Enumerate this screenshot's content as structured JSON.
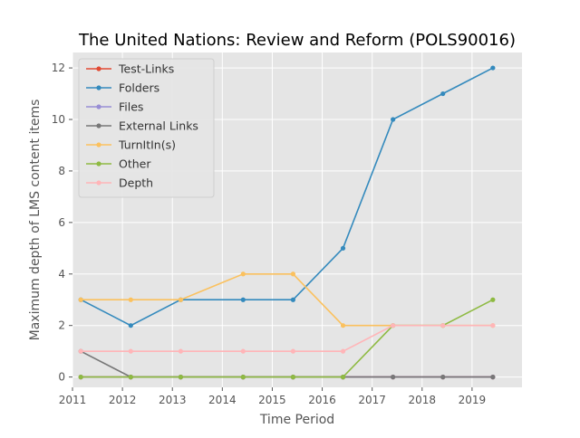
{
  "chart_data": {
    "type": "line",
    "title": "The United Nations: Review and Reform (POLS90016)",
    "xlabel": "Time Period",
    "ylabel": "Maximum depth of LMS content items",
    "xlim": [
      2011,
      2020
    ],
    "ylim": [
      -0.4,
      12.6
    ],
    "xticks": [
      2011,
      2012,
      2013,
      2014,
      2015,
      2016,
      2017,
      2018,
      2019
    ],
    "xtick_labels": [
      "2011",
      "2012",
      "2013",
      "2014",
      "2015",
      "2016",
      "2017",
      "2018",
      "2019"
    ],
    "yticks": [
      0,
      2,
      4,
      6,
      8,
      10,
      12
    ],
    "ytick_labels": [
      "0",
      "2",
      "4",
      "6",
      "8",
      "10",
      "12"
    ],
    "grid": true,
    "legend_position": "top-left",
    "background": "#E5E5E5",
    "x": [
      "2011-03",
      "2012-03",
      "2013-03",
      "2014-06",
      "2015-06",
      "2016-06",
      "2017-06",
      "2018-06",
      "2019-06"
    ],
    "series": [
      {
        "name": "Test-Links",
        "color": "#E24A33",
        "values": [
          0,
          0,
          0,
          0,
          0,
          0,
          0,
          0,
          0
        ]
      },
      {
        "name": "Folders",
        "color": "#348ABD",
        "values": [
          3,
          2,
          3,
          3,
          3,
          5,
          10,
          11,
          12
        ]
      },
      {
        "name": "Files",
        "color": "#988ED5",
        "values": [
          0,
          0,
          0,
          0,
          0,
          0,
          0,
          0,
          0
        ]
      },
      {
        "name": "External Links",
        "color": "#777777",
        "values": [
          1,
          0,
          0,
          0,
          0,
          0,
          0,
          0,
          0
        ]
      },
      {
        "name": "TurnItIn(s)",
        "color": "#FBC15E",
        "values": [
          3,
          3,
          3,
          4,
          4,
          2,
          2,
          2,
          2
        ]
      },
      {
        "name": "Other",
        "color": "#8EBA42",
        "values": [
          0,
          0,
          0,
          0,
          0,
          0,
          2,
          2,
          3
        ]
      },
      {
        "name": "Depth",
        "color": "#FFB5B8",
        "values": [
          1,
          1,
          1,
          1,
          1,
          1,
          2,
          2,
          2
        ]
      }
    ]
  }
}
